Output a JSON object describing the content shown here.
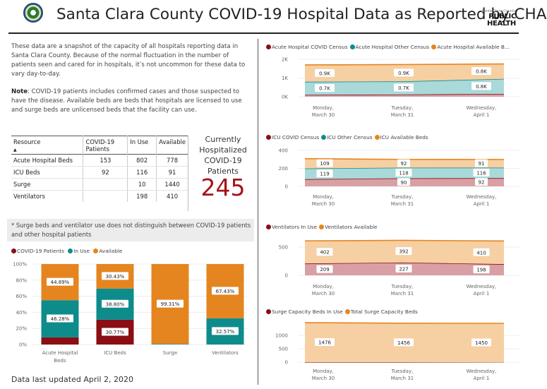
{
  "header": {
    "title": "Santa Clara County COVID-19 Hospital Data as Reported by CHA",
    "logo_small": "Santa Clara County",
    "logo_line1": "PUBLIC",
    "logo_line2": "HEALTH"
  },
  "intro": {
    "paragraph1": "These data are a snapshot of the capacity of all hospitals reporting data in Santa Clara County. Because of the normal fluctuation in the number of patients seen and cared for in hospitals, it’s not uncommon for these data to vary day-to-day.",
    "note_label": "Note",
    "note_text": ": COVID-19 patients includes confirmed cases and those suspected to have the disease. Available beds are beds that hospitals are licensed to use and surge beds are unlicensed beds that the facility can use."
  },
  "resource_table": {
    "headers": [
      "Resource",
      "COVID-19 Patients",
      "In Use",
      "Available"
    ],
    "sort_arrow": "▲",
    "rows": [
      [
        "Acute Hospital Beds",
        "153",
        "802",
        "778"
      ],
      [
        "ICU Beds",
        "92",
        "116",
        "91"
      ],
      [
        "Surge",
        "",
        "10",
        "1440"
      ],
      [
        "Ventilators",
        "",
        "198",
        "410"
      ]
    ]
  },
  "currently_hospitalized": {
    "label_line1": "Currently",
    "label_line2": "Hospitalized",
    "label_line3": "COVID-19",
    "label_line4": "Patients",
    "value": "245"
  },
  "footnote": "* Surge beds and ventilator use does not distinguish between COVID-19 patients and other hospital patients",
  "last_updated": "Data last updated April 2, 2020",
  "colors": {
    "covid": "#8b0e14",
    "in_use": "#0e8c8c",
    "available": "#e5851f",
    "available_light": "#f6cfa3",
    "in_use_light": "#a9d9d9",
    "covid_light": "#d8a0a4"
  },
  "chart_data": [
    {
      "type": "bar",
      "stacked": "100%",
      "legend": [
        "COVID-19 Patients",
        "In Use",
        "Available"
      ],
      "categories": [
        "Acute Hospital Beds",
        "ICU Beds",
        "Surge",
        "Ventilators"
      ],
      "y_ticks": [
        "0%",
        "20%",
        "40%",
        "60%",
        "80%",
        "100%"
      ],
      "series": [
        {
          "name": "COVID-19 Patients",
          "values": [
            8.83,
            30.77,
            0,
            0
          ],
          "labels": [
            "",
            "30.77%",
            "",
            ""
          ]
        },
        {
          "name": "In Use",
          "values": [
            46.28,
            38.8,
            0.69,
            32.57
          ],
          "labels": [
            "46.28%",
            "38.80%",
            "",
            "32.57%"
          ]
        },
        {
          "name": "Available",
          "values": [
            44.89,
            30.43,
            99.31,
            67.43
          ],
          "labels": [
            "44.89%",
            "30.43%",
            "99.31%",
            "67.43%"
          ]
        }
      ]
    },
    {
      "type": "area",
      "legend": [
        "Acute Hospital COVID Census",
        "Acute Hospital Other Census",
        "Acute Hospital Available B..."
      ],
      "x": [
        "Monday, March 30, 2020",
        "Tuesday, March 31, 2020",
        "Wednesday, April 1, 2020"
      ],
      "y_ticks": [
        "0K",
        "1K",
        "2K"
      ],
      "ylim": [
        0,
        2000
      ],
      "series": [
        {
          "name": "COVID",
          "values": [
            100,
            120,
            153
          ]
        },
        {
          "name": "Other",
          "values": [
            700,
            700,
            800
          ],
          "labels": [
            "0.7K",
            "0.7K",
            "0.8K"
          ]
        },
        {
          "name": "Available",
          "values": [
            900,
            900,
            800
          ],
          "labels": [
            "0.9K",
            "0.9K",
            "0.8K"
          ]
        }
      ]
    },
    {
      "type": "area",
      "legend": [
        "ICU COVID Census",
        "ICU Other Census",
        "ICU Available Beds"
      ],
      "x": [
        "Monday, March 30, 2020",
        "Tuesday, March 31, 2020",
        "Wednesday, April 1, 2020"
      ],
      "y_ticks": [
        "0",
        "200",
        "400"
      ],
      "ylim": [
        0,
        400
      ],
      "series": [
        {
          "name": "COVID",
          "values": [
            80,
            90,
            92
          ],
          "labels": [
            "",
            "90",
            "92"
          ]
        },
        {
          "name": "Other",
          "values": [
            119,
            118,
            116
          ],
          "labels": [
            "119",
            "118",
            "116"
          ]
        },
        {
          "name": "Available",
          "values": [
            109,
            92,
            91
          ],
          "labels": [
            "109",
            "92",
            "91"
          ]
        }
      ]
    },
    {
      "type": "area",
      "legend": [
        "Ventilators In Use",
        "Ventilators Available"
      ],
      "x": [
        "Monday, March 30, 2020",
        "Tuesday, March 31, 2020",
        "Wednesday, April 1, 2020"
      ],
      "y_ticks": [
        "0",
        "500"
      ],
      "ylim": [
        0,
        650
      ],
      "series": [
        {
          "name": "In Use",
          "values": [
            209,
            227,
            198
          ],
          "labels": [
            "209",
            "227",
            "198"
          ]
        },
        {
          "name": "Available",
          "values": [
            402,
            392,
            410
          ],
          "labels": [
            "402",
            "392",
            "410"
          ]
        }
      ]
    },
    {
      "type": "area",
      "legend": [
        "Surge Capacity Beds In Use",
        "Total Surge Capacity Beds"
      ],
      "x": [
        "Monday, March 30, 2020",
        "Tuesday, March 31, 2020",
        "Wednesday, April 1, 2020"
      ],
      "y_ticks": [
        "0",
        "500",
        "1000"
      ],
      "ylim": [
        0,
        1450
      ],
      "series": [
        {
          "name": "In Use",
          "values": [
            5,
            5,
            10
          ]
        },
        {
          "name": "Total",
          "values": [
            1476,
            1456,
            1450
          ],
          "labels": [
            "1476",
            "1456",
            "1450"
          ]
        }
      ]
    }
  ]
}
